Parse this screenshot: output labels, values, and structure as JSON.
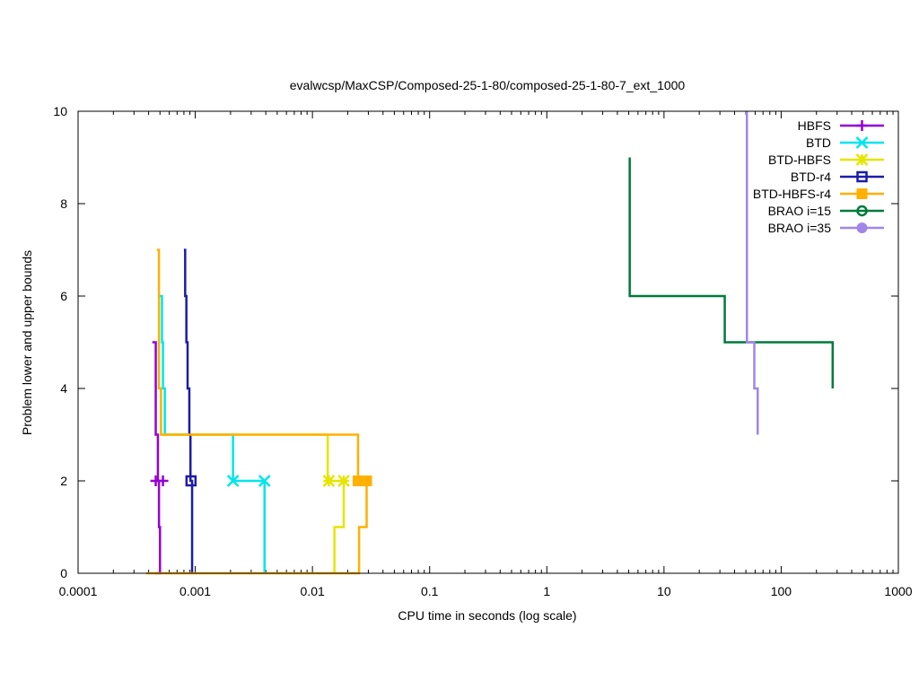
{
  "chart_data": {
    "type": "line",
    "title": "evalwcsp/MaxCSP/Composed-25-1-80/composed-25-1-80-7_ext_1000",
    "xlabel": "CPU time in seconds (log scale)",
    "ylabel": "Problem lower and upper bounds",
    "xscale": "log",
    "xlim": [
      0.0001,
      1000
    ],
    "ylim": [
      0,
      10
    ],
    "xticks": [
      {
        "value": 0.0001,
        "label": "0.0001"
      },
      {
        "value": 0.001,
        "label": "0.001"
      },
      {
        "value": 0.01,
        "label": "0.01"
      },
      {
        "value": 0.1,
        "label": "0.1"
      },
      {
        "value": 1,
        "label": "1"
      },
      {
        "value": 10,
        "label": "10"
      },
      {
        "value": 100,
        "label": "100"
      },
      {
        "value": 1000,
        "label": "1000"
      }
    ],
    "yticks": [
      {
        "value": 0,
        "label": "0"
      },
      {
        "value": 2,
        "label": "2"
      },
      {
        "value": 4,
        "label": "4"
      },
      {
        "value": 6,
        "label": "6"
      },
      {
        "value": 8,
        "label": "8"
      },
      {
        "value": 10,
        "label": "10"
      }
    ],
    "grid": false,
    "legend_position": "top-right",
    "series": [
      {
        "name": "HBFS",
        "color": "#9400d3",
        "marker": "plus",
        "lines": [
          [
            [
              0.00043,
              5
            ],
            [
              0.00046,
              5
            ],
            [
              0.00046,
              3
            ],
            [
              0.00048,
              3
            ],
            [
              0.00048,
              2
            ],
            [
              0.00049,
              2
            ],
            [
              0.00049,
              1
            ],
            [
              0.0005,
              1
            ],
            [
              0.0005,
              0
            ],
            [
              0.00046,
              0
            ]
          ]
        ],
        "markers": [
          [
            0.00046,
            2
          ],
          [
            0.00053,
            2
          ]
        ]
      },
      {
        "name": "BTD",
        "color": "#00e5ee",
        "marker": "cross",
        "lines": [
          [
            [
              0.00049,
              6
            ],
            [
              0.00052,
              6
            ],
            [
              0.00052,
              5
            ],
            [
              0.00053,
              5
            ],
            [
              0.00053,
              4
            ],
            [
              0.00055,
              4
            ],
            [
              0.00055,
              3
            ],
            [
              0.0021,
              3
            ],
            [
              0.0021,
              2
            ],
            [
              0.0039,
              2
            ],
            [
              0.0039,
              0
            ]
          ]
        ],
        "markers": [
          [
            0.0021,
            2
          ],
          [
            0.0039,
            2
          ]
        ]
      },
      {
        "name": "BTD-HBFS",
        "color": "#e5e500",
        "marker": "star",
        "lines": [
          [
            [
              0.00051,
              3
            ],
            [
              0.0135,
              3
            ],
            [
              0.0135,
              2
            ],
            [
              0.0185,
              2
            ],
            [
              0.0185,
              1
            ],
            [
              0.0154,
              1
            ],
            [
              0.0154,
              0
            ]
          ]
        ],
        "markers": [
          [
            0.0138,
            2
          ],
          [
            0.0185,
            2
          ]
        ]
      },
      {
        "name": "BTD-r4",
        "color": "#1c1ca8",
        "marker": "open-square",
        "lines": [
          [
            [
              0.0008,
              7
            ],
            [
              0.00082,
              7
            ],
            [
              0.00082,
              6
            ],
            [
              0.00084,
              6
            ],
            [
              0.00084,
              5
            ],
            [
              0.00086,
              5
            ],
            [
              0.00086,
              4
            ],
            [
              0.00089,
              4
            ],
            [
              0.00089,
              3
            ],
            [
              0.00091,
              3
            ],
            [
              0.00091,
              2
            ],
            [
              0.00094,
              2
            ],
            [
              0.00094,
              0
            ]
          ]
        ],
        "markers": [
          [
            0.00092,
            2
          ]
        ]
      },
      {
        "name": "BTD-HBFS-r4",
        "color": "#ffb000",
        "marker": "filled-square",
        "lines": [
          [
            [
              0.00047,
              7
            ],
            [
              0.00049,
              7
            ],
            [
              0.00049,
              4
            ],
            [
              0.00051,
              4
            ],
            [
              0.00051,
              3
            ],
            [
              0.0245,
              3
            ],
            [
              0.0245,
              2
            ],
            [
              0.029,
              2
            ],
            [
              0.029,
              1
            ],
            [
              0.025,
              1
            ],
            [
              0.025,
              0
            ],
            [
              0.00038,
              0
            ]
          ]
        ],
        "markers": [
          [
            0.0245,
            2
          ],
          [
            0.029,
            2
          ]
        ]
      },
      {
        "name": "BRAO i=15",
        "color": "#007a3d",
        "marker": "open-circle",
        "lines": [
          [
            [
              5.1,
              9
            ],
            [
              5.1,
              6
            ],
            [
              33,
              6
            ],
            [
              33,
              5
            ],
            [
              275,
              5
            ],
            [
              275,
              4
            ]
          ]
        ],
        "markers": []
      },
      {
        "name": "BRAO i=35",
        "color": "#a086e8",
        "marker": "filled-circle",
        "lines": [
          [
            [
              51,
              10
            ],
            [
              51,
              5
            ],
            [
              59,
              5
            ],
            [
              59,
              4
            ],
            [
              63,
              4
            ],
            [
              63,
              3
            ]
          ]
        ],
        "markers": []
      }
    ]
  }
}
